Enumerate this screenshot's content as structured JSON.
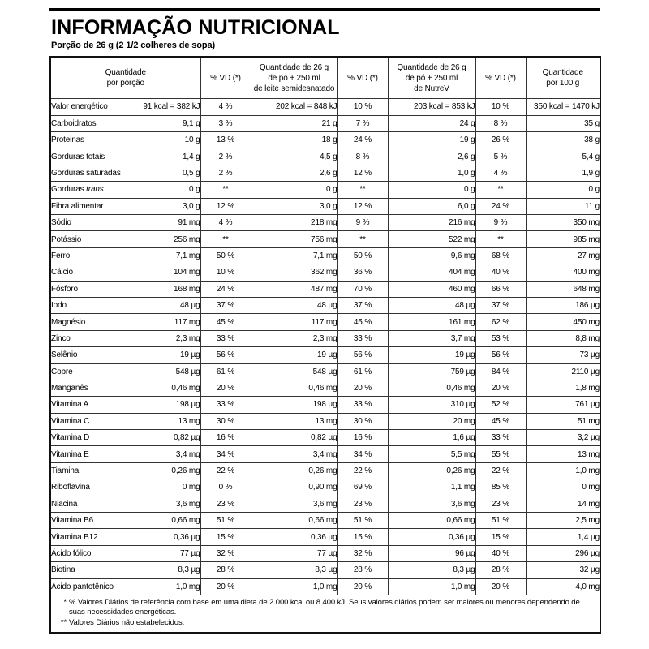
{
  "header": {
    "title": "INFORMAÇÃO NUTRICIONAL",
    "serving": "Porção de 26 g (2 1/2 colheres de sopa)"
  },
  "table": {
    "header": {
      "portion": "Quantidade\npor porção",
      "vd1": "% VD (*)",
      "milk": "Quantidade de 26 g\nde pó + 250 ml\nde leite semidesnatado",
      "vd2": "% VD (*)",
      "nutrev": "Quantidade de 26 g\nde pó + 250 ml\nde NutreV",
      "vd3": "% VD (*)",
      "per100": "Quantidade\npor 100 g"
    },
    "rows": [
      {
        "label": "Valor energético",
        "porcao": "91 kcal = 382 kJ",
        "vd1": "4 %",
        "leite": "202 kcal = 848 kJ",
        "vd2": "10 %",
        "nutrev": "203 kcal = 853 kJ",
        "vd3": "10 %",
        "cem": "350 kcal = 1470 kJ"
      },
      {
        "label": "Carboidratos",
        "porcao": "9,1 g",
        "vd1": "3 %",
        "leite": "21 g",
        "vd2": "7 %",
        "nutrev": "24 g",
        "vd3": "8 %",
        "cem": "35 g"
      },
      {
        "label": "Proteinas",
        "porcao": "10 g",
        "vd1": "13 %",
        "leite": "18 g",
        "vd2": "24 %",
        "nutrev": "19 g",
        "vd3": "26 %",
        "cem": "38 g"
      },
      {
        "label": "Gorduras totais",
        "porcao": "1,4 g",
        "vd1": "2 %",
        "leite": "4,5 g",
        "vd2": "8 %",
        "nutrev": "2,6 g",
        "vd3": "5 %",
        "cem": "5,4 g"
      },
      {
        "label": "Gorduras saturadas",
        "porcao": "0,5 g",
        "vd1": "2 %",
        "leite": "2,6 g",
        "vd2": "12 %",
        "nutrev": "1,0 g",
        "vd3": "4 %",
        "cem": "1,9 g"
      },
      {
        "label": "Gorduras",
        "label_italic": "trans",
        "porcao": "0 g",
        "vd1": "**",
        "leite": "0 g",
        "vd2": "**",
        "nutrev": "0 g",
        "vd3": "**",
        "cem": "0 g"
      },
      {
        "label": "Fibra alimentar",
        "porcao": "3,0 g",
        "vd1": "12 %",
        "leite": "3,0 g",
        "vd2": "12 %",
        "nutrev": "6,0 g",
        "vd3": "24 %",
        "cem": "11 g"
      },
      {
        "label": "Sódio",
        "porcao": "91 mg",
        "vd1": "4 %",
        "leite": "218 mg",
        "vd2": "9 %",
        "nutrev": "216 mg",
        "vd3": "9 %",
        "cem": "350 mg"
      },
      {
        "label": "Potássio",
        "porcao": "256 mg",
        "vd1": "**",
        "leite": "756 mg",
        "vd2": "**",
        "nutrev": "522 mg",
        "vd3": "**",
        "cem": "985 mg"
      },
      {
        "label": "Ferro",
        "porcao": "7,1 mg",
        "vd1": "50 %",
        "leite": "7,1 mg",
        "vd2": "50 %",
        "nutrev": "9,6 mg",
        "vd3": "68 %",
        "cem": "27 mg"
      },
      {
        "label": "Cálcio",
        "porcao": "104 mg",
        "vd1": "10 %",
        "leite": "362 mg",
        "vd2": "36 %",
        "nutrev": "404 mg",
        "vd3": "40 %",
        "cem": "400 mg"
      },
      {
        "label": "Fósforo",
        "porcao": "168 mg",
        "vd1": "24 %",
        "leite": "487 mg",
        "vd2": "70 %",
        "nutrev": "460 mg",
        "vd3": "66 %",
        "cem": "648 mg"
      },
      {
        "label": "Iodo",
        "porcao": "48 µg",
        "vd1": "37 %",
        "leite": "48 µg",
        "vd2": "37 %",
        "nutrev": "48 µg",
        "vd3": "37 %",
        "cem": "186 µg"
      },
      {
        "label": "Magnésio",
        "porcao": "117 mg",
        "vd1": "45 %",
        "leite": "117 mg",
        "vd2": "45 %",
        "nutrev": "161 mg",
        "vd3": "62 %",
        "cem": "450 mg"
      },
      {
        "label": "Zinco",
        "porcao": "2,3 mg",
        "vd1": "33 %",
        "leite": "2,3 mg",
        "vd2": "33 %",
        "nutrev": "3,7 mg",
        "vd3": "53 %",
        "cem": "8,8 mg"
      },
      {
        "label": "Selênio",
        "porcao": "19 µg",
        "vd1": "56 %",
        "leite": "19 µg",
        "vd2": "56 %",
        "nutrev": "19 µg",
        "vd3": "56 %",
        "cem": "73 µg"
      },
      {
        "label": "Cobre",
        "porcao": "548 µg",
        "vd1": "61 %",
        "leite": "548 µg",
        "vd2": "61 %",
        "nutrev": "759 µg",
        "vd3": "84 %",
        "cem": "2110 µg"
      },
      {
        "label": "Manganês",
        "porcao": "0,46 mg",
        "vd1": "20 %",
        "leite": "0,46 mg",
        "vd2": "20 %",
        "nutrev": "0,46 mg",
        "vd3": "20 %",
        "cem": "1,8 mg"
      },
      {
        "label": "Vitamina A",
        "porcao": "198 µg",
        "vd1": "33 %",
        "leite": "198 µg",
        "vd2": "33 %",
        "nutrev": "310 µg",
        "vd3": "52 %",
        "cem": "761 µg"
      },
      {
        "label": "Vitamina C",
        "porcao": "13 mg",
        "vd1": "30 %",
        "leite": "13 mg",
        "vd2": "30 %",
        "nutrev": "20 mg",
        "vd3": "45 %",
        "cem": "51 mg"
      },
      {
        "label": "Vitamina D",
        "porcao": "0,82 µg",
        "vd1": "16 %",
        "leite": "0,82 µg",
        "vd2": "16 %",
        "nutrev": "1,6 µg",
        "vd3": "33 %",
        "cem": "3,2 µg"
      },
      {
        "label": "Vitamina E",
        "porcao": "3,4 mg",
        "vd1": "34 %",
        "leite": "3,4 mg",
        "vd2": "34 %",
        "nutrev": "5,5 mg",
        "vd3": "55 %",
        "cem": "13 mg"
      },
      {
        "label": "Tiamina",
        "porcao": "0,26 mg",
        "vd1": "22 %",
        "leite": "0,26 mg",
        "vd2": "22 %",
        "nutrev": "0,26 mg",
        "vd3": "22 %",
        "cem": "1,0 mg"
      },
      {
        "label": "Riboflavina",
        "porcao": "0 mg",
        "vd1": "0 %",
        "leite": "0,90 mg",
        "vd2": "69 %",
        "nutrev": "1,1 mg",
        "vd3": "85 %",
        "cem": "0 mg"
      },
      {
        "label": "Niacina",
        "porcao": "3,6 mg",
        "vd1": "23 %",
        "leite": "3,6 mg",
        "vd2": "23 %",
        "nutrev": "3,6 mg",
        "vd3": "23 %",
        "cem": "14 mg"
      },
      {
        "label": "Vitamina B6",
        "porcao": "0,66 mg",
        "vd1": "51 %",
        "leite": "0,66 mg",
        "vd2": "51 %",
        "nutrev": "0,66 mg",
        "vd3": "51 %",
        "cem": "2,5 mg"
      },
      {
        "label": "Vitamina B12",
        "porcao": "0,36 µg",
        "vd1": "15 %",
        "leite": "0,36 µg",
        "vd2": "15 %",
        "nutrev": "0,36 µg",
        "vd3": "15 %",
        "cem": "1,4 µg"
      },
      {
        "label": "Ácido fólico",
        "porcao": "77 µg",
        "vd1": "32 %",
        "leite": "77 µg",
        "vd2": "32 %",
        "nutrev": "96 µg",
        "vd3": "40 %",
        "cem": "296 µg"
      },
      {
        "label": "Biotina",
        "porcao": "8,3 µg",
        "vd1": "28 %",
        "leite": "8,3 µg",
        "vd2": "28 %",
        "nutrev": "8,3 µg",
        "vd3": "28 %",
        "cem": "32 µg"
      },
      {
        "label": "Ácido pantotênico",
        "porcao": "1,0 mg",
        "vd1": "20 %",
        "leite": "1,0 mg",
        "vd2": "20 %",
        "nutrev": "1,0 mg",
        "vd3": "20 %",
        "cem": "4,0 mg"
      }
    ]
  },
  "footnotes": {
    "fn1_marker": "*",
    "fn1_text": "% Valores Diários de referência com base em uma dieta de 2.000 kcal ou 8.400 kJ. Seus valores diários podem ser maiores ou menores dependendo de suas necessidades energéticas.",
    "fn2_marker": "**",
    "fn2_text": "Valores Diários não estabelecidos."
  }
}
